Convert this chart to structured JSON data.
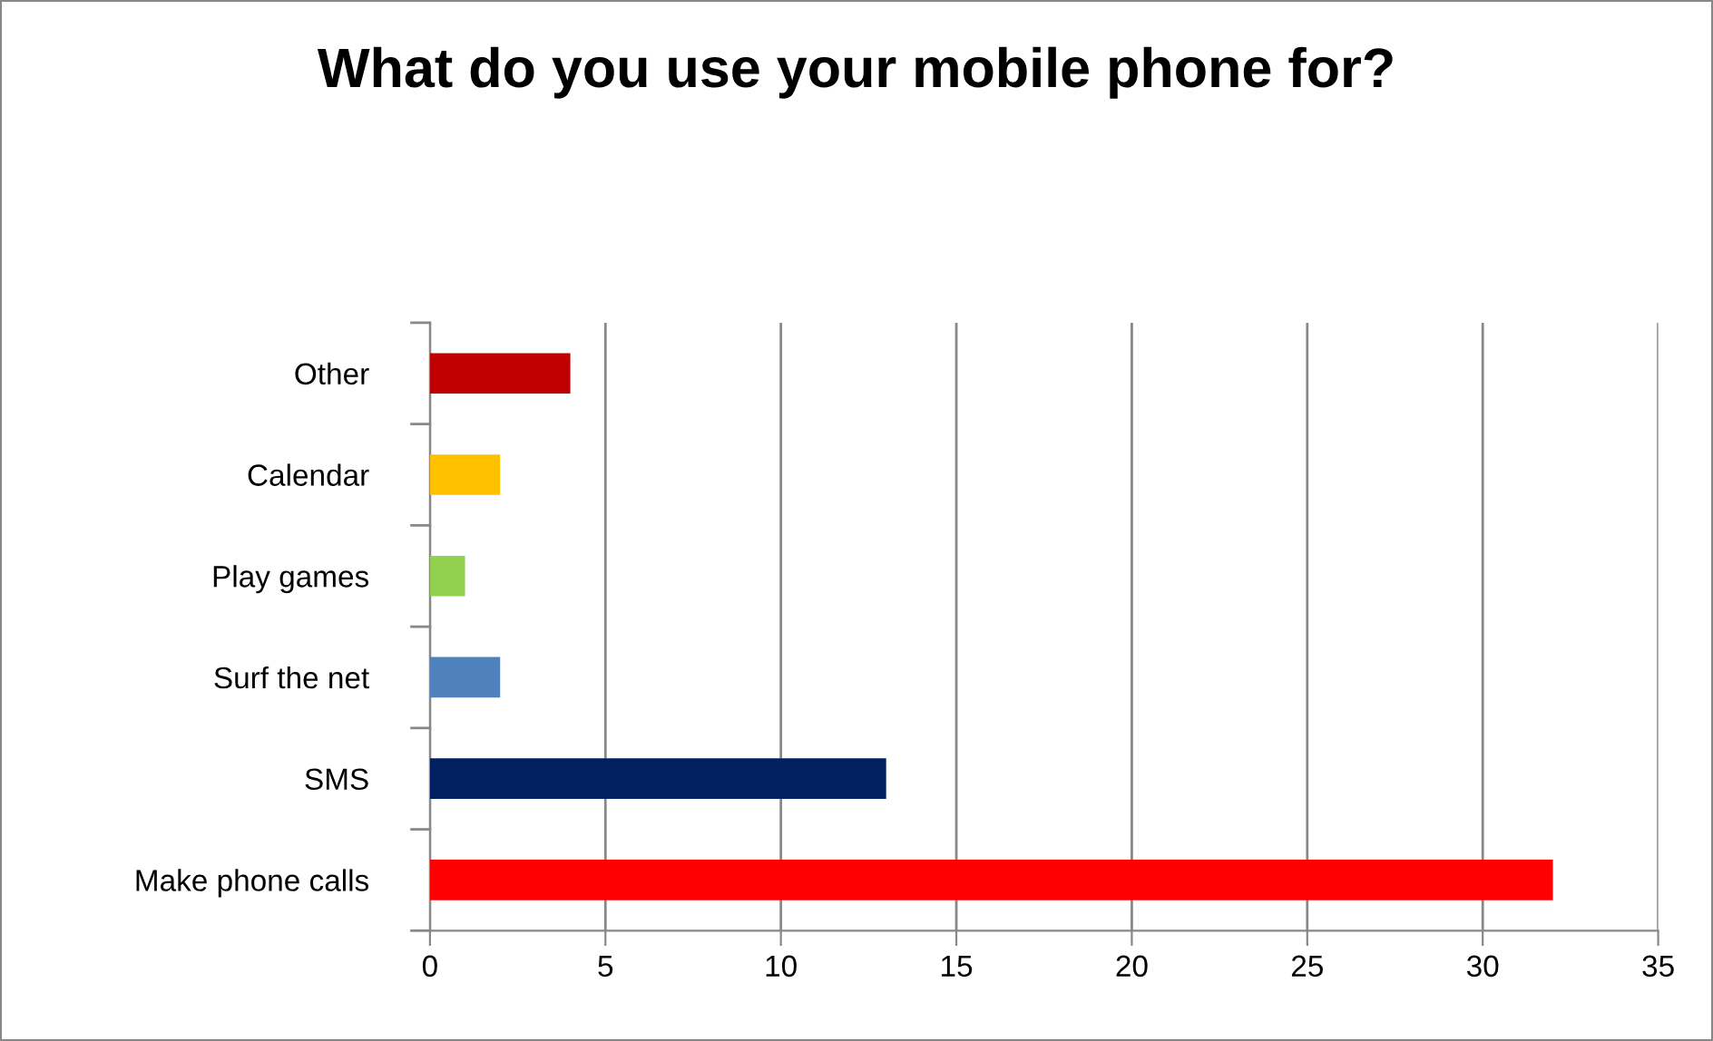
{
  "chart_data": {
    "type": "bar",
    "orientation": "horizontal",
    "title": "What do you use your mobile phone for?",
    "categories": [
      "Other",
      "Calendar",
      "Play games",
      "Surf the net",
      "SMS",
      "Make phone calls"
    ],
    "values": [
      4,
      2,
      1,
      2,
      13,
      32
    ],
    "colors": [
      "#c00000",
      "#ffc000",
      "#92d050",
      "#4f81bd",
      "#002060",
      "#ff0000"
    ],
    "xlim": [
      0,
      35
    ],
    "xticks": [
      0,
      5,
      10,
      15,
      20,
      25,
      30,
      35
    ],
    "grid": "x"
  }
}
